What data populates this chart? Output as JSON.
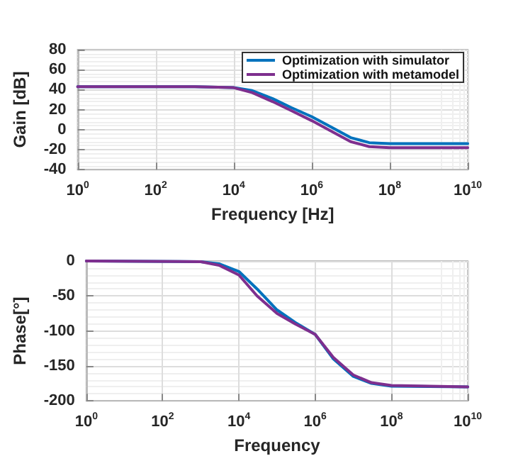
{
  "chart_data": [
    {
      "type": "line",
      "xlabel": "Frequency [Hz]",
      "ylabel": "Gain [dB]",
      "log": "x",
      "grid": true,
      "legend": "top right",
      "marker": "none",
      "line_style": "solid",
      "xlim": [
        1,
        10000000000
      ],
      "xticks": [
        {
          "value": 1,
          "label": "10$^{0}$"
        },
        {
          "value": 100,
          "label": "10$^{2}$"
        },
        {
          "value": 10000,
          "label": "10$^{4}$"
        },
        {
          "value": 1000000,
          "label": "10$^{6}$"
        },
        {
          "value": 100000000,
          "label": "10$^{8}$"
        },
        {
          "value": 10000000000,
          "label": "10$^{10}$"
        }
      ],
      "ylim": [
        -40,
        80
      ],
      "yticks": [
        -40,
        -20,
        0,
        20,
        40,
        60,
        80
      ],
      "series": [
        {
          "name": "Optimization with simulator",
          "color": "#0072bd",
          "x": [
            1,
            1000,
            10000,
            30000,
            100000,
            300000,
            1000000,
            3000000,
            10000000,
            30000000,
            100000000,
            10000000000
          ],
          "values": [
            43,
            43,
            42,
            39,
            31,
            22,
            13,
            3,
            -8,
            -13,
            -14,
            -14
          ]
        },
        {
          "name": "Optimization with metamodel",
          "color": "#7e2f8e",
          "x": [
            1,
            1000,
            10000,
            30000,
            100000,
            300000,
            1000000,
            3000000,
            10000000,
            30000000,
            100000000,
            10000000000
          ],
          "values": [
            43,
            43,
            42,
            37,
            28,
            19,
            9,
            -1,
            -12,
            -17,
            -18,
            -18
          ]
        }
      ]
    },
    {
      "type": "line",
      "xlabel": "Frequency",
      "ylabel": "Phase[°]",
      "log": "x",
      "grid": true,
      "marker": "none",
      "line_style": "solid",
      "xlim": [
        1,
        10000000000
      ],
      "xticks": [
        {
          "value": 1,
          "label": "10$^{0}$"
        },
        {
          "value": 100,
          "label": "10$^{2}$"
        },
        {
          "value": 10000,
          "label": "10$^{4}$"
        },
        {
          "value": 1000000,
          "label": "10$^{6}$"
        },
        {
          "value": 100000000,
          "label": "10$^{8}$"
        },
        {
          "value": 10000000000,
          "label": "10$^{10}$"
        }
      ],
      "ylim": [
        -200,
        0
      ],
      "yticks": [
        -200,
        -150,
        -100,
        -50,
        0
      ],
      "series": [
        {
          "color": "#0072bd",
          "x": [
            1,
            1000,
            3000,
            10000,
            30000,
            100000,
            300000,
            1000000,
            3000000,
            10000000,
            30000000,
            100000000,
            10000000000
          ],
          "values": [
            0,
            -1,
            -4,
            -15,
            -40,
            -70,
            -88,
            -105,
            -140,
            -165,
            -175,
            -179,
            -180
          ]
        },
        {
          "color": "#7e2f8e",
          "x": [
            1,
            1000,
            3000,
            10000,
            30000,
            100000,
            300000,
            1000000,
            3000000,
            10000000,
            30000000,
            100000000,
            10000000000
          ],
          "values": [
            0,
            -1,
            -6,
            -20,
            -50,
            -75,
            -90,
            -105,
            -138,
            -163,
            -174,
            -178,
            -180
          ]
        }
      ]
    }
  ]
}
